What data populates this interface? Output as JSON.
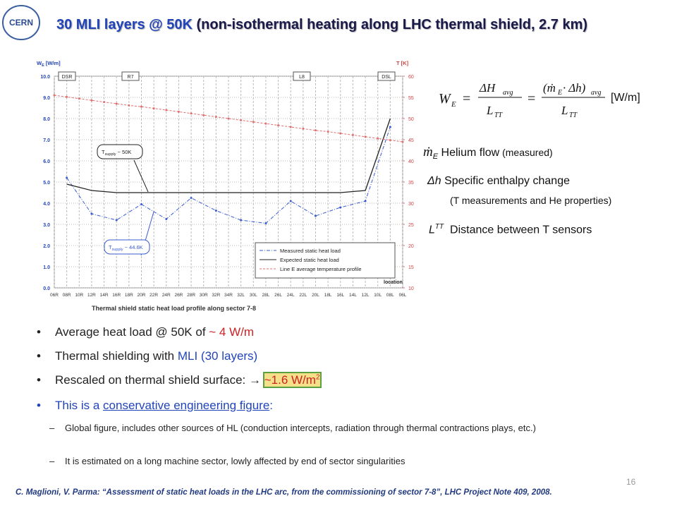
{
  "header": {
    "logo": "CERN",
    "title_main": "30 MLI layers @ 50K",
    "title_rest": " (non-isothermal heating along LHC thermal shield, 2.7 km)"
  },
  "chart_data": {
    "type": "line",
    "ylabel": {
      "base": "W",
      "sub": "E",
      "rest": " [W/m]"
    },
    "y2label": "T [K]",
    "xlabel": "location",
    "caption": "Thermal shield static heat load profile along sector 7-8",
    "categories": [
      "06R",
      "08R",
      "10R",
      "12R",
      "14R",
      "16R",
      "18R",
      "20R",
      "22R",
      "24R",
      "26R",
      "28R",
      "30R",
      "32R",
      "34R",
      "32L",
      "30L",
      "28L",
      "26L",
      "24L",
      "22L",
      "20L",
      "18L",
      "16L",
      "14L",
      "12L",
      "10L",
      "08L",
      "06L"
    ],
    "series": [
      {
        "name": "Measured static heat load",
        "color": "#3a5bd0",
        "x": [
          "08R",
          "12R",
          "16R",
          "20R",
          "24R",
          "28R",
          "32R",
          "32L",
          "28L",
          "24L",
          "20L",
          "16L",
          "12L",
          "08L"
        ],
        "values": [
          5.2,
          3.5,
          3.2,
          3.95,
          3.25,
          4.25,
          3.65,
          3.2,
          3.05,
          4.1,
          3.4,
          3.8,
          4.1,
          7.6
        ]
      },
      {
        "name": "Expected static heat load",
        "color": "#222222",
        "x": [
          "08R",
          "12R",
          "16R",
          "20R",
          "24R",
          "28R",
          "32R",
          "32L",
          "28L",
          "24L",
          "20L",
          "16L",
          "12L",
          "08L"
        ],
        "values": [
          4.9,
          4.6,
          4.5,
          4.5,
          4.5,
          4.5,
          4.5,
          4.5,
          4.5,
          4.5,
          4.5,
          4.5,
          4.6,
          8.0
        ]
      },
      {
        "name": "Line E average temperature profile",
        "color": "#e07070",
        "axis": "y2",
        "x": [
          "06R",
          "08R",
          "10R",
          "12R",
          "14R",
          "16R",
          "18R",
          "20R",
          "22R",
          "24R",
          "26R",
          "28R",
          "30R",
          "32R",
          "34R",
          "32L",
          "30L",
          "28L",
          "26L",
          "24L",
          "22L",
          "20L",
          "18L",
          "16L",
          "14L",
          "12L",
          "10L",
          "08L",
          "06L"
        ],
        "values": [
          55.5,
          55.1,
          54.7,
          54.3,
          53.9,
          53.5,
          53.1,
          52.8,
          52.4,
          52.0,
          51.6,
          51.2,
          50.8,
          50.4,
          50.0,
          49.6,
          49.2,
          48.8,
          48.4,
          48.0,
          47.6,
          47.2,
          46.9,
          46.5,
          46.1,
          45.7,
          45.3,
          44.9,
          44.5
        ]
      }
    ],
    "ylim": [
      0,
      10
    ],
    "yticks": [
      {
        "value": 0,
        "label": "0.0"
      },
      {
        "value": 1,
        "label": "1.0"
      },
      {
        "value": 2,
        "label": "2.0"
      },
      {
        "value": 3,
        "label": "3.0"
      },
      {
        "value": 4,
        "label": "4.0"
      },
      {
        "value": 5,
        "label": "5.0"
      },
      {
        "value": 6,
        "label": "6.0"
      },
      {
        "value": 7,
        "label": "7.0"
      },
      {
        "value": 8,
        "label": "8.0"
      },
      {
        "value": 9,
        "label": "9.0"
      },
      {
        "value": 10,
        "label": "10.0"
      }
    ],
    "y2lim": [
      10,
      60
    ],
    "y2ticks": [
      10,
      15,
      20,
      25,
      30,
      35,
      40,
      45,
      50,
      55,
      60
    ],
    "grid": true,
    "regions": [
      "DSR",
      "R7",
      "L8",
      "DSL"
    ],
    "annotations": [
      {
        "base": "T",
        "sub": "supply",
        "rest": " ~ 50K"
      },
      {
        "base": "T",
        "sub": "supply",
        "rest": " ~ 44.6K"
      }
    ]
  },
  "formula": {
    "lhs": "W",
    "lhs_sub": "E",
    "equals": "=",
    "num1": "ΔH",
    "num1_sub": "avg",
    "den": "L",
    "den_sub": "TT",
    "num2": "(ṁ",
    "num2_sub": "E",
    "num2_rest": " · Δh)",
    "num2_sub2": "avg",
    "unit": "[W/m]"
  },
  "legend": [
    {
      "symbol": "ṁ",
      "sub": "E",
      "text": "Helium flow",
      "note": " (measured)"
    },
    {
      "symbol": "Δh",
      "text": "Specific enthalpy change",
      "note": "(T measurements and He properties)"
    },
    {
      "symbol": "L",
      "sup": "TT",
      "text": "Distance between T sensors"
    }
  ],
  "bullets": [
    {
      "text": "Average heat load @ 50K of ",
      "accent": "~ 4 W/m"
    },
    {
      "text": "Thermal shielding with ",
      "accent": "MLI (30 layers)"
    },
    {
      "text": "Rescaled on thermal shield surface: ",
      "arrow": "→",
      "accent": "~1.6 W/m",
      "sup": "2"
    },
    {
      "text": "This is a ",
      "link": "conservative engineering figure",
      "end": ":"
    }
  ],
  "subbullets": [
    "Global figure, includes other sources of HL (conduction intercepts, radiation through thermal contractions plays, etc.)",
    "It is estimated on a long machine sector, lowly affected by end of sector singularities"
  ],
  "footer": {
    "citation": "C. Maglioni, V. Parma:  “Assessment of static heat loads in the LHC arc, from the commissioning  of sector 7-8”, LHC Project Note 409, 2008.",
    "page": 16
  }
}
